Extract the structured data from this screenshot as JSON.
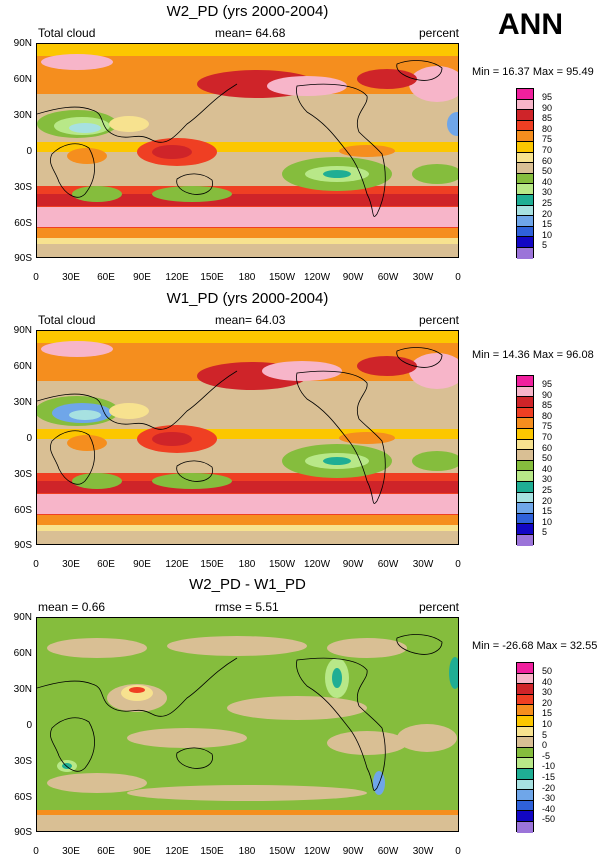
{
  "season": "ANN",
  "x_tick_labels": [
    "0",
    "30E",
    "60E",
    "90E",
    "120E",
    "150E",
    "180",
    "150W",
    "120W",
    "90W",
    "60W",
    "30W",
    "0"
  ],
  "y_tick_labels": [
    "90N",
    "60N",
    "30N",
    "0",
    "30S",
    "60S",
    "90S"
  ],
  "panels": [
    {
      "title": "W2_PD (yrs 2000-2004)",
      "left_label": "Total cloud",
      "stat_label": "mean=",
      "stat_value": "64.68",
      "right_label": "percent",
      "minmax": "Min = 16.37 Max = 95.49",
      "legend_levels": [
        "95",
        "90",
        "85",
        "80",
        "75",
        "70",
        "60",
        "50",
        "40",
        "30",
        "25",
        "20",
        "15",
        "10",
        "5"
      ],
      "legend_colors": [
        "#f0209e",
        "#f7b5c9",
        "#cf2429",
        "#ef3f23",
        "#f58e1e",
        "#fcc700",
        "#f7e28f",
        "#d9bf94",
        "#85bd3d",
        "#b8e888",
        "#1fae94",
        "#a7e1e1",
        "#6fa6e9",
        "#2f61da",
        "#1206c4",
        "#9b74d9"
      ]
    },
    {
      "title": "W1_PD (yrs 2000-2004)",
      "left_label": "Total cloud",
      "stat_label": "mean=",
      "stat_value": "64.03",
      "right_label": "percent",
      "minmax": "Min = 14.36 Max = 96.08",
      "legend_levels": [
        "95",
        "90",
        "85",
        "80",
        "75",
        "70",
        "60",
        "50",
        "40",
        "30",
        "25",
        "20",
        "15",
        "10",
        "5"
      ],
      "legend_colors": [
        "#f0209e",
        "#f7b5c9",
        "#cf2429",
        "#ef3f23",
        "#f58e1e",
        "#fcc700",
        "#f7e28f",
        "#d9bf94",
        "#85bd3d",
        "#b8e888",
        "#1fae94",
        "#a7e1e1",
        "#6fa6e9",
        "#2f61da",
        "#1206c4",
        "#9b74d9"
      ]
    },
    {
      "title": "W2_PD - W1_PD",
      "left_label": "mean =  0.66",
      "stat_label": "rmse =",
      "stat_value": "5.51",
      "right_label": "percent",
      "minmax": "Min = -26.68 Max = 32.55",
      "legend_levels": [
        "50",
        "40",
        "30",
        "20",
        "15",
        "10",
        "5",
        "0",
        "-5",
        "-10",
        "-15",
        "-20",
        "-30",
        "-40",
        "-50"
      ],
      "legend_colors": [
        "#f0209e",
        "#f7b5c9",
        "#cf2429",
        "#ef3f23",
        "#f58e1e",
        "#fcc700",
        "#f7e28f",
        "#d9bf94",
        "#85bd3d",
        "#b8e888",
        "#1fae94",
        "#a7e1e1",
        "#6fa6e9",
        "#2f61da",
        "#1206c4",
        "#9b74d9"
      ]
    }
  ]
}
